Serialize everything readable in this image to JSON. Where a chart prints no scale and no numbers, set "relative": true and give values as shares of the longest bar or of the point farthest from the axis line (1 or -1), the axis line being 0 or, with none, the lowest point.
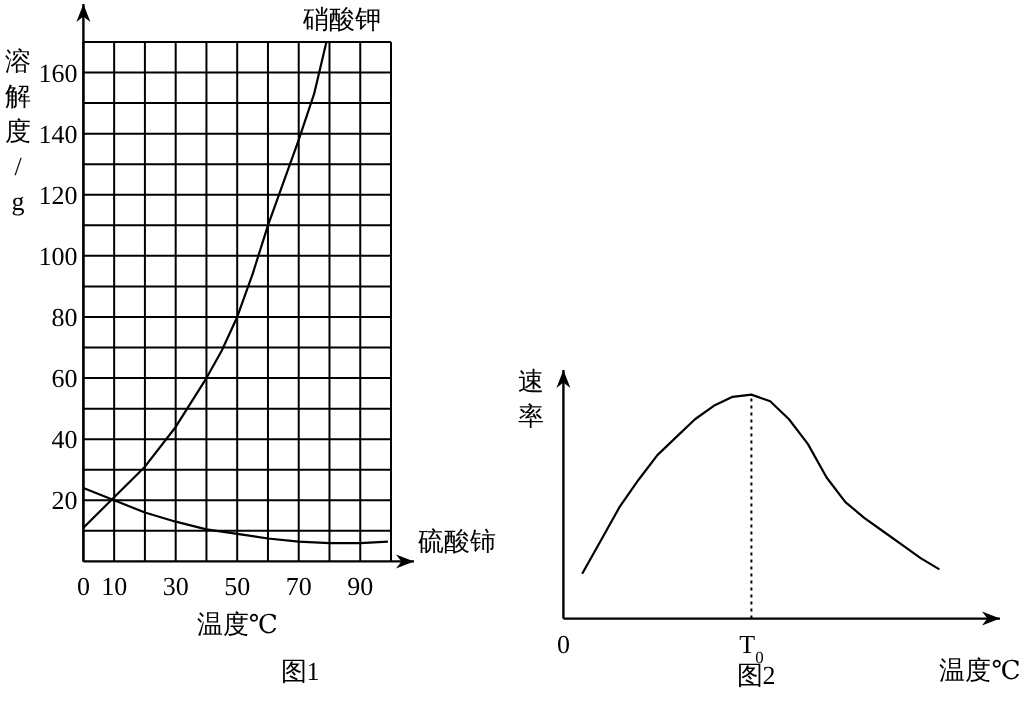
{
  "chart_data": [
    {
      "type": "line",
      "xlabel": "温度℃",
      "ylabel": "溶解度/g",
      "xlim": [
        0,
        100
      ],
      "ylim": [
        0,
        170
      ],
      "xticks": [
        0,
        10,
        {
          "value": 20,
          "label": null
        },
        30,
        {
          "value": 40,
          "label": null
        },
        50,
        {
          "value": 60,
          "label": null
        },
        70,
        {
          "value": 80,
          "label": null
        },
        90,
        {
          "value": 100,
          "label": null
        }
      ],
      "yticks": [
        {
          "value": 10,
          "label": null
        },
        20,
        {
          "value": 30,
          "label": null
        },
        40,
        {
          "value": 50,
          "label": null
        },
        60,
        {
          "value": 70,
          "label": null
        },
        80,
        {
          "value": 90,
          "label": null
        },
        100,
        {
          "value": 110,
          "label": null
        },
        120,
        {
          "value": 130,
          "label": null
        },
        140,
        {
          "value": 150,
          "label": null
        },
        160,
        {
          "value": 170,
          "label": null
        }
      ],
      "grid": true,
      "legend": false,
      "marker": "none",
      "line_style": "solid",
      "series": [
        {
          "name": "硝酸钾",
          "color": "#000000",
          "x": [
            0,
            10,
            20,
            30,
            40,
            45,
            50,
            55,
            60,
            65,
            70,
            75,
            79
          ],
          "values": [
            11,
            21,
            31,
            44,
            60,
            69,
            80,
            94,
            110,
            124,
            138,
            153,
            170
          ]
        },
        {
          "name": "硫酸铈",
          "color": "#000000",
          "x": [
            0,
            10,
            20,
            30,
            40,
            50,
            60,
            70,
            80,
            90,
            99
          ],
          "values": [
            24,
            20,
            16,
            13,
            10.5,
            9,
            7.5,
            6.5,
            6,
            6,
            6.5
          ]
        }
      ],
      "annotations": [
        "图1"
      ]
    },
    {
      "type": "line",
      "relative": true,
      "xlabel": "温度℃",
      "ylabel": "速率",
      "categories": [
        "0",
        null,
        null,
        null,
        null,
        null,
        null,
        null,
        null,
        null,
        "T$_{0}$",
        null,
        null,
        null,
        null,
        null,
        null,
        null,
        null,
        null,
        null
      ],
      "marker": "none",
      "line_style": "solid",
      "series": [
        {
          "color": "#000000",
          "values": [
            null,
            0.2,
            0.35,
            0.5,
            0.62,
            0.73,
            0.81,
            0.89,
            0.95,
            0.99,
            1.0,
            0.97,
            0.89,
            0.78,
            0.63,
            0.52,
            0.45,
            0.39,
            0.33,
            0.27,
            0.22
          ]
        }
      ],
      "ref_lines": [
        {
          "axis": "x",
          "value": "T$_{0}$",
          "line_style": "dotted",
          "color": "#000000"
        }
      ],
      "annotations": [
        "图2"
      ]
    }
  ]
}
